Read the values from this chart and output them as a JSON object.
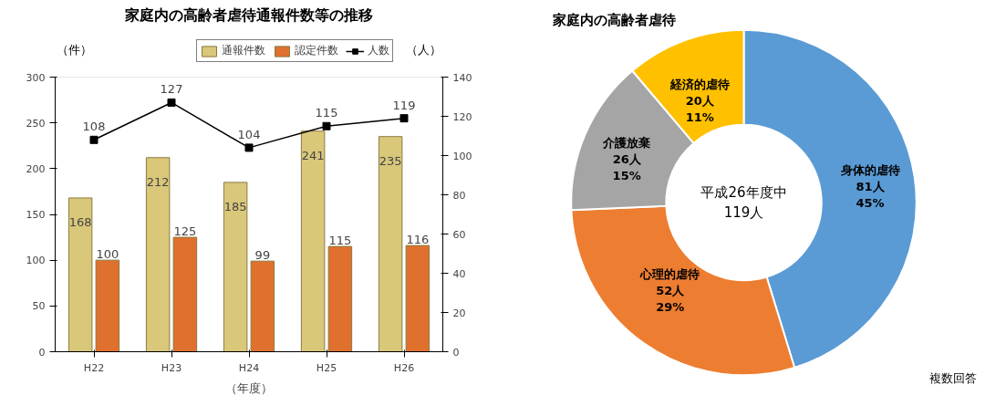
{
  "chart_data": [
    {
      "type": "bar",
      "title": "家庭内の高齢者虐待通報件数等の推移",
      "ylabel": "（件）",
      "y2label": "（人）",
      "xlabel": "（年度）",
      "categories": [
        "H22",
        "H23",
        "H24",
        "H25",
        "H26"
      ],
      "series": [
        {
          "name": "通報件数",
          "color": "#d9c77a",
          "values": [
            168,
            212,
            185,
            241,
            235
          ]
        },
        {
          "name": "認定件数",
          "color": "#e0702e",
          "values": [
            100,
            125,
            99,
            115,
            116
          ]
        },
        {
          "name": "人数",
          "type": "line",
          "axis": "y2",
          "color": "#000000",
          "marker": "square",
          "values": [
            108,
            127,
            104,
            115,
            119
          ]
        }
      ],
      "ylim": [
        0,
        300
      ],
      "yticks": [
        0,
        50,
        100,
        150,
        200,
        250,
        300
      ],
      "y2lim": [
        0,
        140
      ],
      "y2ticks": [
        0,
        20,
        40,
        60,
        80,
        100,
        120,
        140
      ],
      "legend": "top",
      "data_labels": true
    },
    {
      "type": "donut",
      "title": "家庭内の高齢者虐待",
      "categories": [
        "身体的虐待",
        "心理的虐待",
        "介護放棄",
        "経済的虐待"
      ],
      "values": [
        81,
        52,
        26,
        20
      ],
      "colors": [
        "#5b9bd5",
        "#ed7d31",
        "#a5a5a5",
        "#ffc000"
      ],
      "value_labels": [
        "81人\n45%",
        "52人\n29%",
        "26人\n15%",
        "20人\n11%"
      ],
      "annotations": [
        "平成26年度中\n119人",
        "複数回答"
      ]
    }
  ]
}
